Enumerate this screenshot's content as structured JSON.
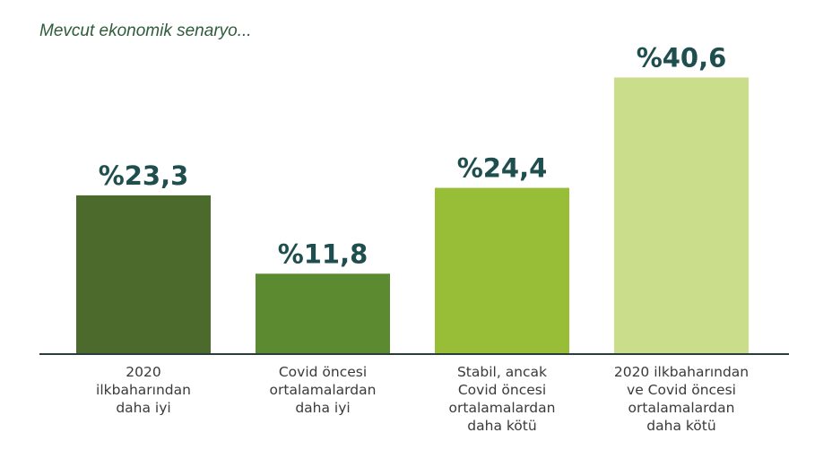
{
  "chart_data": {
    "type": "bar",
    "title": "Mevcut ekonomik senaryo...",
    "xlabel": "",
    "ylabel": "",
    "ylim": [
      0,
      45
    ],
    "grid": false,
    "legend": "none",
    "categories": [
      [
        "2020",
        "ilkbaharından",
        "daha iyi"
      ],
      [
        "Covid öncesi",
        "ortalamalardan",
        "daha iyi"
      ],
      [
        "Stabil, ancak",
        "Covid öncesi",
        "ortalamalardan",
        "daha kötü"
      ],
      [
        "2020 ilkbaharından",
        "ve Covid öncesi",
        "ortalamalardan",
        "daha kötü"
      ]
    ],
    "values": [
      23.3,
      11.8,
      24.4,
      40.6
    ],
    "value_labels": [
      "%23,3",
      "%11,8",
      "%24,4",
      "%40,6"
    ],
    "colors": [
      "#4d6a2d",
      "#5b8a30",
      "#98bd37",
      "#c9dd8b"
    ],
    "value_label_color": "#1f4e4f",
    "axis_color": "#2b3d3d"
  }
}
